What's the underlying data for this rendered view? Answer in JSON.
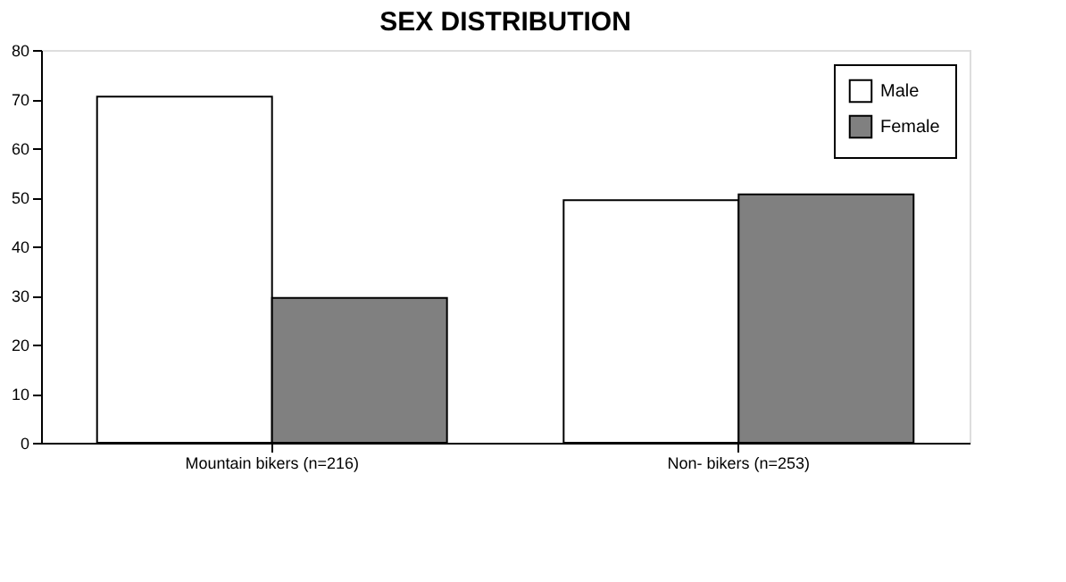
{
  "chart_data": {
    "type": "bar",
    "title": "SEX DISTRIBUTION",
    "categories": [
      "Mountain bikers (n=216)",
      "Non- bikers (n=253)"
    ],
    "series": [
      {
        "name": "Male",
        "color": "#ffffff",
        "values": [
          70.5,
          49.4
        ]
      },
      {
        "name": "Female",
        "color": "#808080",
        "values": [
          29.5,
          50.6
        ]
      }
    ],
    "ylim": [
      0,
      80
    ],
    "yticks": [
      0,
      10,
      20,
      30,
      40,
      50,
      60,
      70,
      80
    ],
    "grid": false,
    "legend": "top right"
  }
}
